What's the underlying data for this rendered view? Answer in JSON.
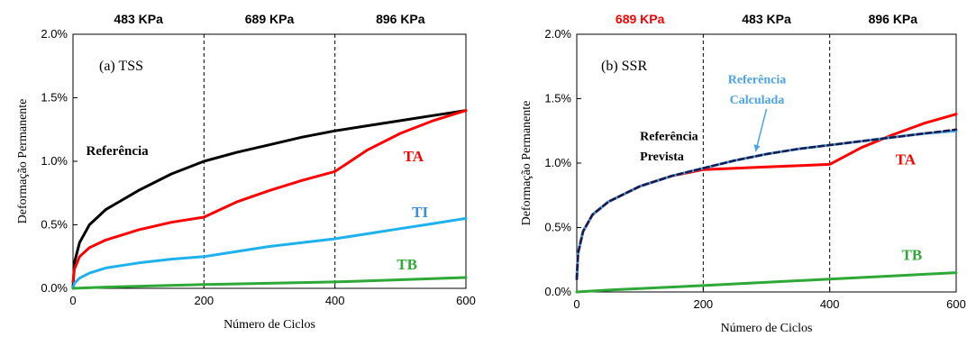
{
  "chart_data": [
    {
      "type": "line",
      "panel_label": "(a) TSS",
      "xlabel": "Número de Ciclos",
      "ylabel": "Deformação  Permanente",
      "xlim": [
        0,
        600
      ],
      "ylim": [
        0,
        2.0
      ],
      "x_ticks": [
        "0",
        "200",
        "400",
        "600"
      ],
      "y_ticks": [
        "0.0%",
        "0.5%",
        "1.0%",
        "1.5%",
        "2.0%"
      ],
      "pressure_headers": [
        {
          "text": "483 KPa",
          "color": "#000000"
        },
        {
          "text": "689 KPa",
          "color": "#000000"
        },
        {
          "text": "896 KPa",
          "color": "#000000"
        }
      ],
      "series": [
        {
          "name": "Referência",
          "color": "#000000",
          "x": [
            0,
            2,
            10,
            25,
            50,
            100,
            150,
            200,
            250,
            300,
            350,
            400,
            450,
            500,
            550,
            600
          ],
          "y": [
            0.0,
            0.2,
            0.36,
            0.5,
            0.62,
            0.77,
            0.9,
            1.0,
            1.07,
            1.13,
            1.19,
            1.24,
            1.28,
            1.32,
            1.36,
            1.4
          ]
        },
        {
          "name": "TA",
          "color": "#ff0000",
          "x": [
            0,
            2,
            10,
            25,
            50,
            100,
            150,
            200,
            250,
            300,
            350,
            400,
            450,
            500,
            550,
            600
          ],
          "y": [
            0.05,
            0.15,
            0.25,
            0.32,
            0.38,
            0.46,
            0.52,
            0.56,
            0.68,
            0.77,
            0.85,
            0.92,
            1.09,
            1.22,
            1.32,
            1.4
          ]
        },
        {
          "name": "TI",
          "color": "#1fb0ee",
          "x": [
            0,
            2,
            10,
            25,
            50,
            100,
            150,
            200,
            250,
            300,
            350,
            400,
            450,
            500,
            550,
            600
          ],
          "y": [
            0.0,
            0.04,
            0.08,
            0.12,
            0.16,
            0.2,
            0.23,
            0.25,
            0.29,
            0.33,
            0.36,
            0.39,
            0.43,
            0.47,
            0.51,
            0.55
          ]
        },
        {
          "name": "TB",
          "color": "#2ea836",
          "x": [
            0,
            50,
            200,
            400,
            600
          ],
          "y": [
            0.0,
            0.01,
            0.03,
            0.05,
            0.085
          ]
        }
      ],
      "annotations": [
        {
          "text": "Referência",
          "color": "#000000",
          "x": 20,
          "y": 1.05
        },
        {
          "text": "TA",
          "color": "#ff0000",
          "x": 520,
          "y": 1.0
        },
        {
          "text": "TI",
          "color": "#3a8fd8",
          "x": 530,
          "y": 0.56
        },
        {
          "text": "TB",
          "color": "#2ea836",
          "x": 510,
          "y": 0.15
        }
      ]
    },
    {
      "type": "line",
      "panel_label": "(b) SSR",
      "xlabel": "Número de Ciclos",
      "ylabel": "Deformação  Permanente",
      "xlim": [
        0,
        600
      ],
      "ylim": [
        0,
        2.0
      ],
      "x_ticks": [
        "0",
        "200",
        "400",
        "600"
      ],
      "y_ticks": [
        "0.0%",
        "0.5%",
        "1.0%",
        "1.5%",
        "2.0%"
      ],
      "pressure_headers": [
        {
          "text": "689 KPa",
          "color": "#ff0000"
        },
        {
          "text": "483 KPa",
          "color": "#000000"
        },
        {
          "text": "896 KPa",
          "color": "#000000"
        }
      ],
      "series": [
        {
          "name": "TA",
          "color": "#ff0000",
          "x": [
            0,
            2,
            10,
            25,
            50,
            100,
            150,
            200,
            250,
            300,
            350,
            400,
            450,
            500,
            550,
            600
          ],
          "y": [
            0.1,
            0.3,
            0.47,
            0.6,
            0.7,
            0.82,
            0.9,
            0.95,
            0.96,
            0.97,
            0.98,
            0.99,
            1.12,
            1.22,
            1.31,
            1.38
          ]
        },
        {
          "name": "Referência Calculada",
          "color": "#4da3e6",
          "x": [
            0,
            2,
            10,
            25,
            50,
            100,
            150,
            200,
            250,
            300,
            350,
            400,
            450,
            500,
            550,
            600
          ],
          "y": [
            0.1,
            0.3,
            0.47,
            0.6,
            0.7,
            0.82,
            0.9,
            0.96,
            1.02,
            1.07,
            1.11,
            1.14,
            1.17,
            1.2,
            1.23,
            1.25
          ]
        },
        {
          "name": "Referência Prevista",
          "color": "#1a1a4a",
          "x": [
            0,
            2,
            10,
            25,
            50,
            100,
            150,
            200,
            250,
            300,
            350,
            400,
            450,
            500,
            550,
            600
          ],
          "y": [
            0.1,
            0.3,
            0.47,
            0.6,
            0.7,
            0.82,
            0.9,
            0.96,
            1.02,
            1.07,
            1.11,
            1.14,
            1.17,
            1.2,
            1.23,
            1.26
          ]
        },
        {
          "name": "TB",
          "color": "#2ea836",
          "x": [
            0,
            50,
            200,
            400,
            600
          ],
          "y": [
            0.0,
            0.015,
            0.05,
            0.1,
            0.15
          ]
        }
      ],
      "annotations": [
        {
          "text": "Referência",
          "color": "#000000",
          "x": 100,
          "y": 1.18
        },
        {
          "text": "Prevista",
          "color": "#000000",
          "x": 100,
          "y": 1.02
        },
        {
          "text": "Referência",
          "color": "#4da3e6",
          "x": 285,
          "y": 1.62
        },
        {
          "text": "Calculada",
          "color": "#4da3e6",
          "x": 285,
          "y": 1.46
        },
        {
          "text": "TA",
          "color": "#ff0000",
          "x": 520,
          "y": 0.99
        },
        {
          "text": "TB",
          "color": "#2ea836",
          "x": 530,
          "y": 0.25
        }
      ]
    }
  ]
}
